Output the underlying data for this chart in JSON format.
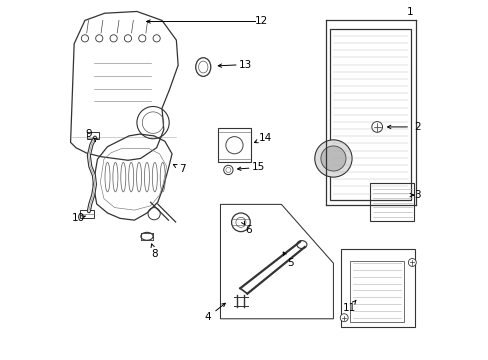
{
  "background_color": "#ffffff",
  "fig_width": 4.89,
  "fig_height": 3.6,
  "dpi": 100,
  "label_color": "#000000",
  "line_color": "#333333",
  "line_width": 0.8,
  "font_size_labels": 7.5
}
